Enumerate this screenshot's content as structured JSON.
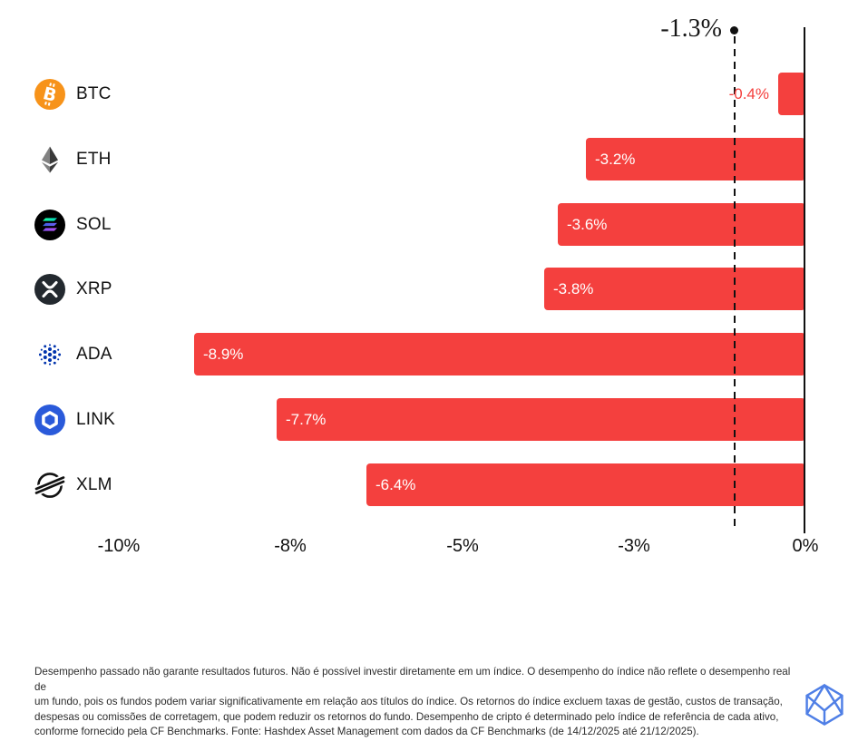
{
  "chart_data": {
    "type": "bar",
    "orientation": "horizontal",
    "title": "",
    "xlabel": "",
    "ylabel": "",
    "categories": [
      "BTC",
      "ETH",
      "SOL",
      "XRP",
      "ADA",
      "LINK",
      "XLM"
    ],
    "values": [
      -0.4,
      -3.2,
      -3.6,
      -3.8,
      -8.9,
      -7.7,
      -6.4
    ],
    "bar_labels": [
      "-0.4%",
      "-3.2%",
      "-3.6%",
      "-3.8%",
      "-8.9%",
      "-7.7%",
      "-6.4%"
    ],
    "reference_line": {
      "value": -1.3,
      "label": "-1.3%"
    },
    "x_ticks": [
      {
        "value": -10,
        "label": "-10%"
      },
      {
        "value": -7.5,
        "label": "-8%"
      },
      {
        "value": -5,
        "label": "-5%"
      },
      {
        "value": -2.5,
        "label": "-3%"
      },
      {
        "value": 0,
        "label": "0%"
      }
    ],
    "xlim": [
      -10.7,
      0
    ],
    "grid": false,
    "legend": false,
    "bar_color": "#f4403e",
    "label_color_inside": "#ffffff",
    "label_color_outside": "#f4403e",
    "axis_color": "#111111"
  },
  "assets": [
    {
      "ticker": "BTC",
      "icon": "btc-icon",
      "color": "#f7931a"
    },
    {
      "ticker": "ETH",
      "icon": "eth-icon",
      "color": "#4b4b4b"
    },
    {
      "ticker": "SOL",
      "icon": "sol-icon",
      "color": "#000000"
    },
    {
      "ticker": "XRP",
      "icon": "xrp-icon",
      "color": "#23292f"
    },
    {
      "ticker": "ADA",
      "icon": "ada-icon",
      "color": "#0033ad"
    },
    {
      "ticker": "LINK",
      "icon": "link-icon",
      "color": "#2a5ada"
    },
    {
      "ticker": "XLM",
      "icon": "xlm-icon",
      "color": "#111111"
    }
  ],
  "footer": {
    "disclaimer_lines": [
      "Desempenho passado não garante resultados futuros. Não é possível investir diretamente em um índice. O desempenho do índice não reflete o desempenho real de",
      "um fundo, pois os fundos podem variar significativamente em relação aos títulos do índice. Os retornos do índice excluem taxas de gestão, custos de transação,",
      "despesas ou comissões de corretagem, que podem reduzir os retornos do fundo. Desempenho de cripto é determinado pelo índice de referência de cada ativo,",
      "conforme fornecido pela CF Benchmarks. Fonte: Hashdex Asset Management com dados da CF Benchmarks (de 14/12/2025 até 21/12/2025)."
    ],
    "logo": {
      "name": "hashdex-logo",
      "color": "#4f7fe6"
    }
  }
}
